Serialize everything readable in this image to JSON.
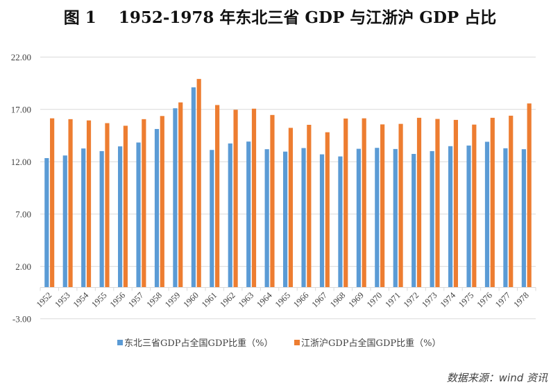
{
  "title": "图 1    1952-1978 年东北三省 GDP 与江浙沪 GDP 占比",
  "source": "数据来源：wind 资讯",
  "colors": {
    "series1": "#5b9bd5",
    "series2": "#ed7d31",
    "grid": "#d9d9d9",
    "axis": "#d9d9d9",
    "text": "#404040"
  },
  "chart_data": {
    "type": "bar",
    "title": "图 1 1952-1978 年东北三省 GDP 与江浙沪 GDP 占比",
    "xlabel": "",
    "ylabel": "",
    "ylim": [
      -3,
      22
    ],
    "yticks": [
      22,
      17,
      12,
      7,
      2,
      -3
    ],
    "ytick_labels": [
      "22.00",
      "17.00",
      "12.00",
      "7.00",
      "2.00",
      "-3.00"
    ],
    "grid": true,
    "legend_position": "bottom",
    "categories": [
      "1952",
      "1953",
      "1954",
      "1955",
      "1956",
      "1957",
      "1958",
      "1959",
      "1960",
      "1961",
      "1962",
      "1963",
      "1964",
      "1965",
      "1966",
      "1967",
      "1968",
      "1969",
      "1970",
      "1971",
      "1972",
      "1973",
      "1974",
      "1975",
      "1976",
      "1977",
      "1978"
    ],
    "series": [
      {
        "name": "东北三省GDP占全国GDP比重（%）",
        "values": [
          12.35,
          12.6,
          13.27,
          13.02,
          13.47,
          13.84,
          15.13,
          17.11,
          19.11,
          13.13,
          13.75,
          13.93,
          13.2,
          12.97,
          13.31,
          12.71,
          12.51,
          13.24,
          13.33,
          13.22,
          12.75,
          13.02,
          13.49,
          13.55,
          13.91,
          13.29,
          13.2
        ]
      },
      {
        "name": "江浙沪GDP占全国GDP比重（%）",
        "values": [
          16.15,
          16.07,
          15.95,
          15.69,
          15.44,
          16.07,
          16.37,
          17.67,
          19.91,
          17.42,
          16.97,
          17.07,
          16.47,
          15.24,
          15.53,
          14.82,
          16.13,
          16.15,
          15.57,
          15.62,
          16.2,
          16.09,
          16.0,
          15.55,
          16.2,
          16.4,
          17.57
        ]
      }
    ]
  }
}
